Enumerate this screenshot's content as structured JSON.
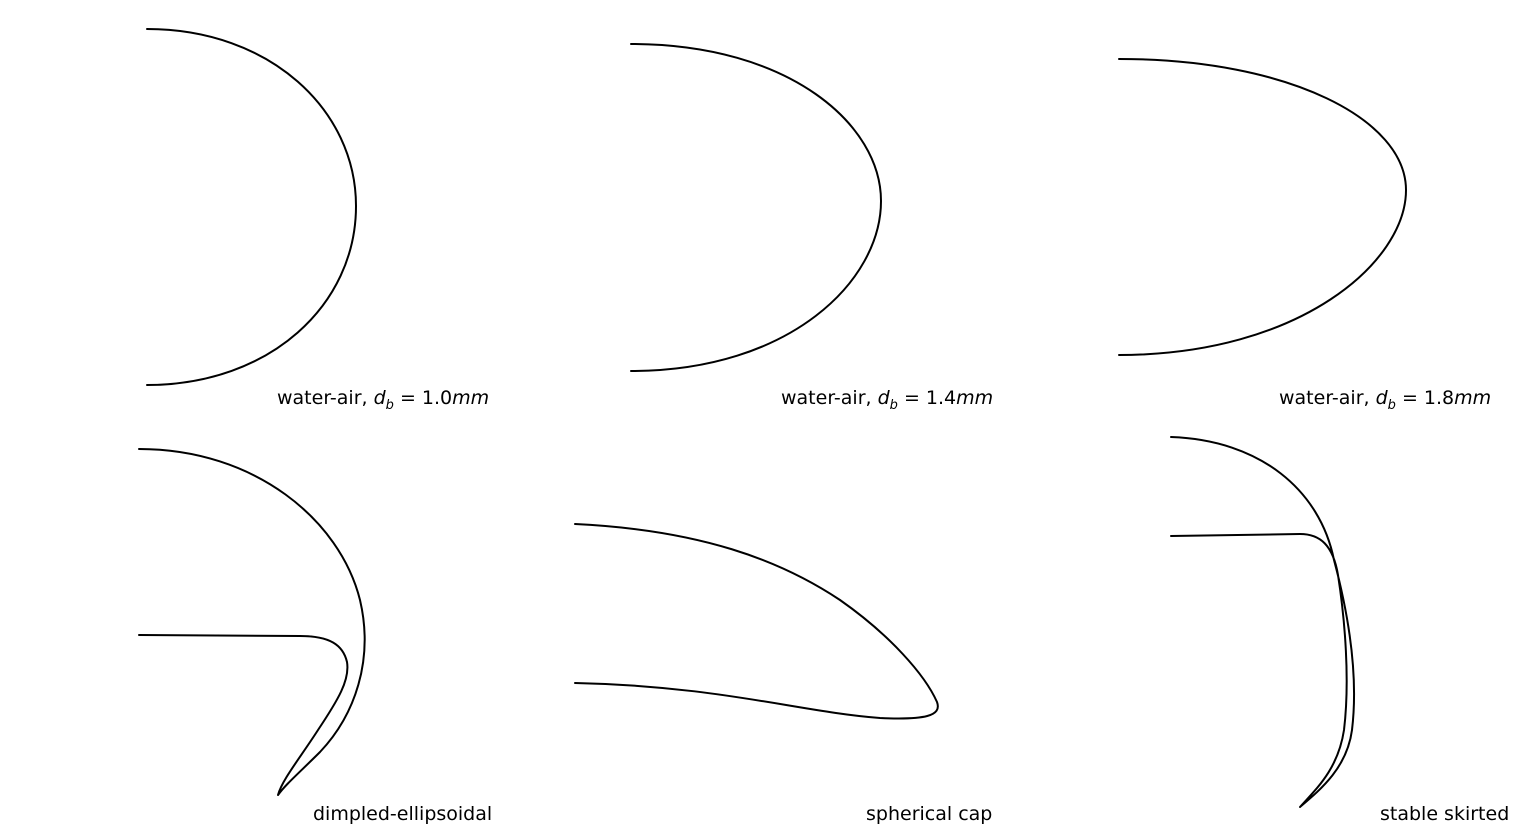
{
  "panels": [
    {
      "id": "water-air-1-0",
      "caption": {
        "prefix": "water-air, ",
        "symbol": "d",
        "subscript": "b",
        "equals": " = ",
        "value": "1.0",
        "unit": "mm"
      }
    },
    {
      "id": "water-air-1-4",
      "caption": {
        "prefix": "water-air, ",
        "symbol": "d",
        "subscript": "b",
        "equals": " = ",
        "value": "1.4",
        "unit": "mm"
      }
    },
    {
      "id": "water-air-1-8",
      "caption": {
        "prefix": "water-air, ",
        "symbol": "d",
        "subscript": "b",
        "equals": " = ",
        "value": "1.8",
        "unit": "mm"
      }
    },
    {
      "id": "dimpled-ellipsoidal",
      "caption": {
        "text": "dimpled-ellipsoidal"
      }
    },
    {
      "id": "spherical-cap",
      "caption": {
        "text": "spherical cap"
      }
    },
    {
      "id": "stable-skirted",
      "caption": {
        "text": "stable skirted"
      }
    }
  ],
  "colors": {
    "stroke": "#000000",
    "background": "#ffffff"
  }
}
